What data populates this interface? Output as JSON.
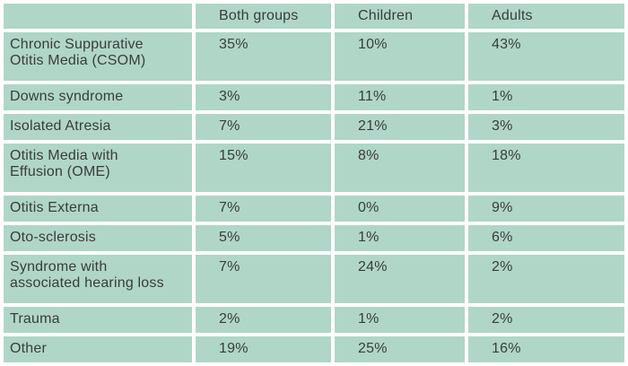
{
  "colors": {
    "cell_background": "#b0d6c8",
    "gutter": "#ffffff",
    "text": "#3a3c3b"
  },
  "chart_data": {
    "type": "table",
    "title": "",
    "columns": [
      "",
      "Both groups",
      "Children",
      "Adults"
    ],
    "rows": [
      {
        "label": "Chronic Suppurative Otitis Media (CSOM)",
        "values": [
          "35%",
          "10%",
          "43%"
        ]
      },
      {
        "label": "Downs syndrome",
        "values": [
          "3%",
          "11%",
          "1%"
        ]
      },
      {
        "label": "Isolated Atresia",
        "values": [
          "7%",
          "21%",
          "3%"
        ]
      },
      {
        "label": "Otitis Media with Effusion (OME)",
        "values": [
          "15%",
          "8%",
          "18%"
        ]
      },
      {
        "label": "Otitis Externa",
        "values": [
          "7%",
          "0%",
          "9%"
        ]
      },
      {
        "label": "Oto-sclerosis",
        "values": [
          "5%",
          "1%",
          "6%"
        ]
      },
      {
        "label": "Syndrome with associated hearing loss",
        "values": [
          "7%",
          "24%",
          "2%"
        ]
      },
      {
        "label": "Trauma",
        "values": [
          "2%",
          "1%",
          "2%"
        ]
      },
      {
        "label": "Other",
        "values": [
          "19%",
          "25%",
          "16%"
        ]
      }
    ]
  }
}
